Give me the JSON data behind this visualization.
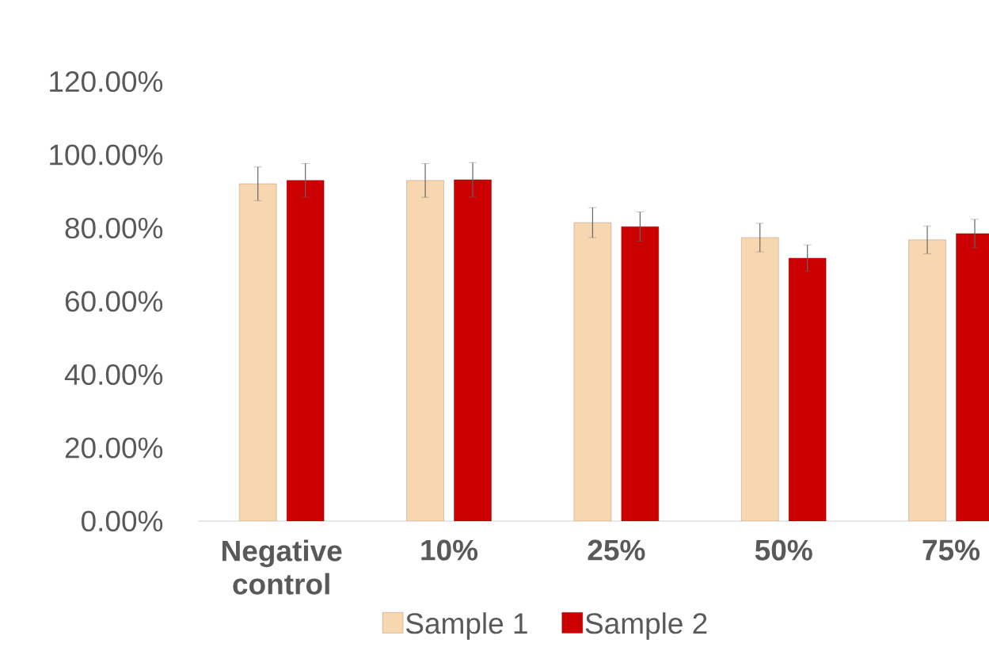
{
  "chart_data": {
    "type": "bar",
    "categories": [
      "Negative control",
      "10%",
      "25%",
      "50%",
      "75%"
    ],
    "series": [
      {
        "name": "Sample 1",
        "color": "#f7d7b0",
        "values": [
          92.1,
          93.0,
          81.5,
          77.4,
          76.8
        ],
        "errors": [
          4.6,
          4.6,
          4.1,
          3.9,
          3.8
        ]
      },
      {
        "name": "Sample 2",
        "color": "#cc0000",
        "values": [
          93.0,
          93.2,
          80.4,
          71.8,
          78.5
        ],
        "errors": [
          4.6,
          4.7,
          4.0,
          3.6,
          3.9
        ]
      }
    ],
    "ylim": [
      0,
      120
    ],
    "yticks": [
      {
        "value": 0,
        "label": "0.00%"
      },
      {
        "value": 20,
        "label": "20.00%"
      },
      {
        "value": 40,
        "label": "40.00%"
      },
      {
        "value": 60,
        "label": "60.00%"
      },
      {
        "value": 80,
        "label": "80.00%"
      },
      {
        "value": 100,
        "label": "100.00%"
      },
      {
        "value": 120,
        "label": "120.00%"
      }
    ],
    "grid": false,
    "legend": "bottom"
  }
}
